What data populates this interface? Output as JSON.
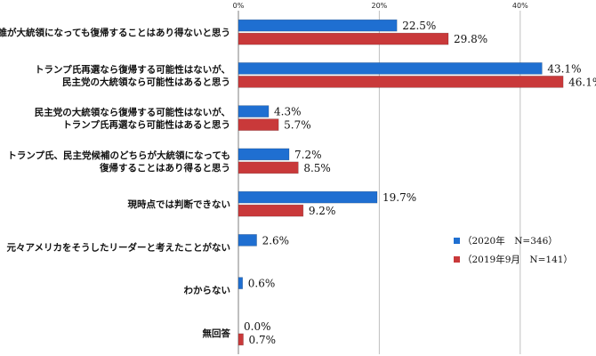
{
  "colors": {
    "series_2020": "#1f6fd1",
    "series_2019": "#c9393a",
    "gridline": "#bfbfbf",
    "axis": "#7f7f7f"
  },
  "chart_data": {
    "type": "bar",
    "orientation": "horizontal",
    "categories": [
      [
        "誰が大統領になっても復帰することはあり得ないと思う"
      ],
      [
        "トランプ氏再選なら復帰する可能性はないが、",
        "民主党の大統領なら可能性はあると思う"
      ],
      [
        "民主党の大統領なら復帰する可能性はないが、",
        "トランプ氏再選なら可能性はあると思う"
      ],
      [
        "トランプ氏、民主党候補のどちらが大統領になっても",
        "復帰することはあり得ると思う"
      ],
      [
        "現時点では判断できない"
      ],
      [
        "元々アメリカをそうしたリーダーと考えたことがない"
      ],
      [
        "わからない"
      ],
      [
        "無回答"
      ]
    ],
    "series": [
      {
        "name": "（2020年　N=346）",
        "values": [
          22.5,
          43.1,
          4.3,
          7.2,
          19.7,
          2.6,
          0.6,
          0.0
        ],
        "labels": [
          "22.5%",
          "43.1%",
          "4.3%",
          "7.2%",
          "19.7%",
          "2.6%",
          "0.6%",
          "0.0%"
        ]
      },
      {
        "name": "（2019年9月　N=141）",
        "values": [
          29.8,
          46.1,
          5.7,
          8.5,
          9.2,
          null,
          null,
          0.7
        ],
        "labels": [
          "29.8%",
          "46.1%",
          "5.7%",
          "8.5%",
          "9.2%",
          null,
          null,
          "0.7%"
        ]
      }
    ],
    "xlim": [
      0,
      50
    ],
    "xticks": [
      0,
      20,
      40
    ],
    "xtick_labels": [
      "0%",
      "20%",
      "40%"
    ],
    "grid": true,
    "legend_position": "right"
  }
}
